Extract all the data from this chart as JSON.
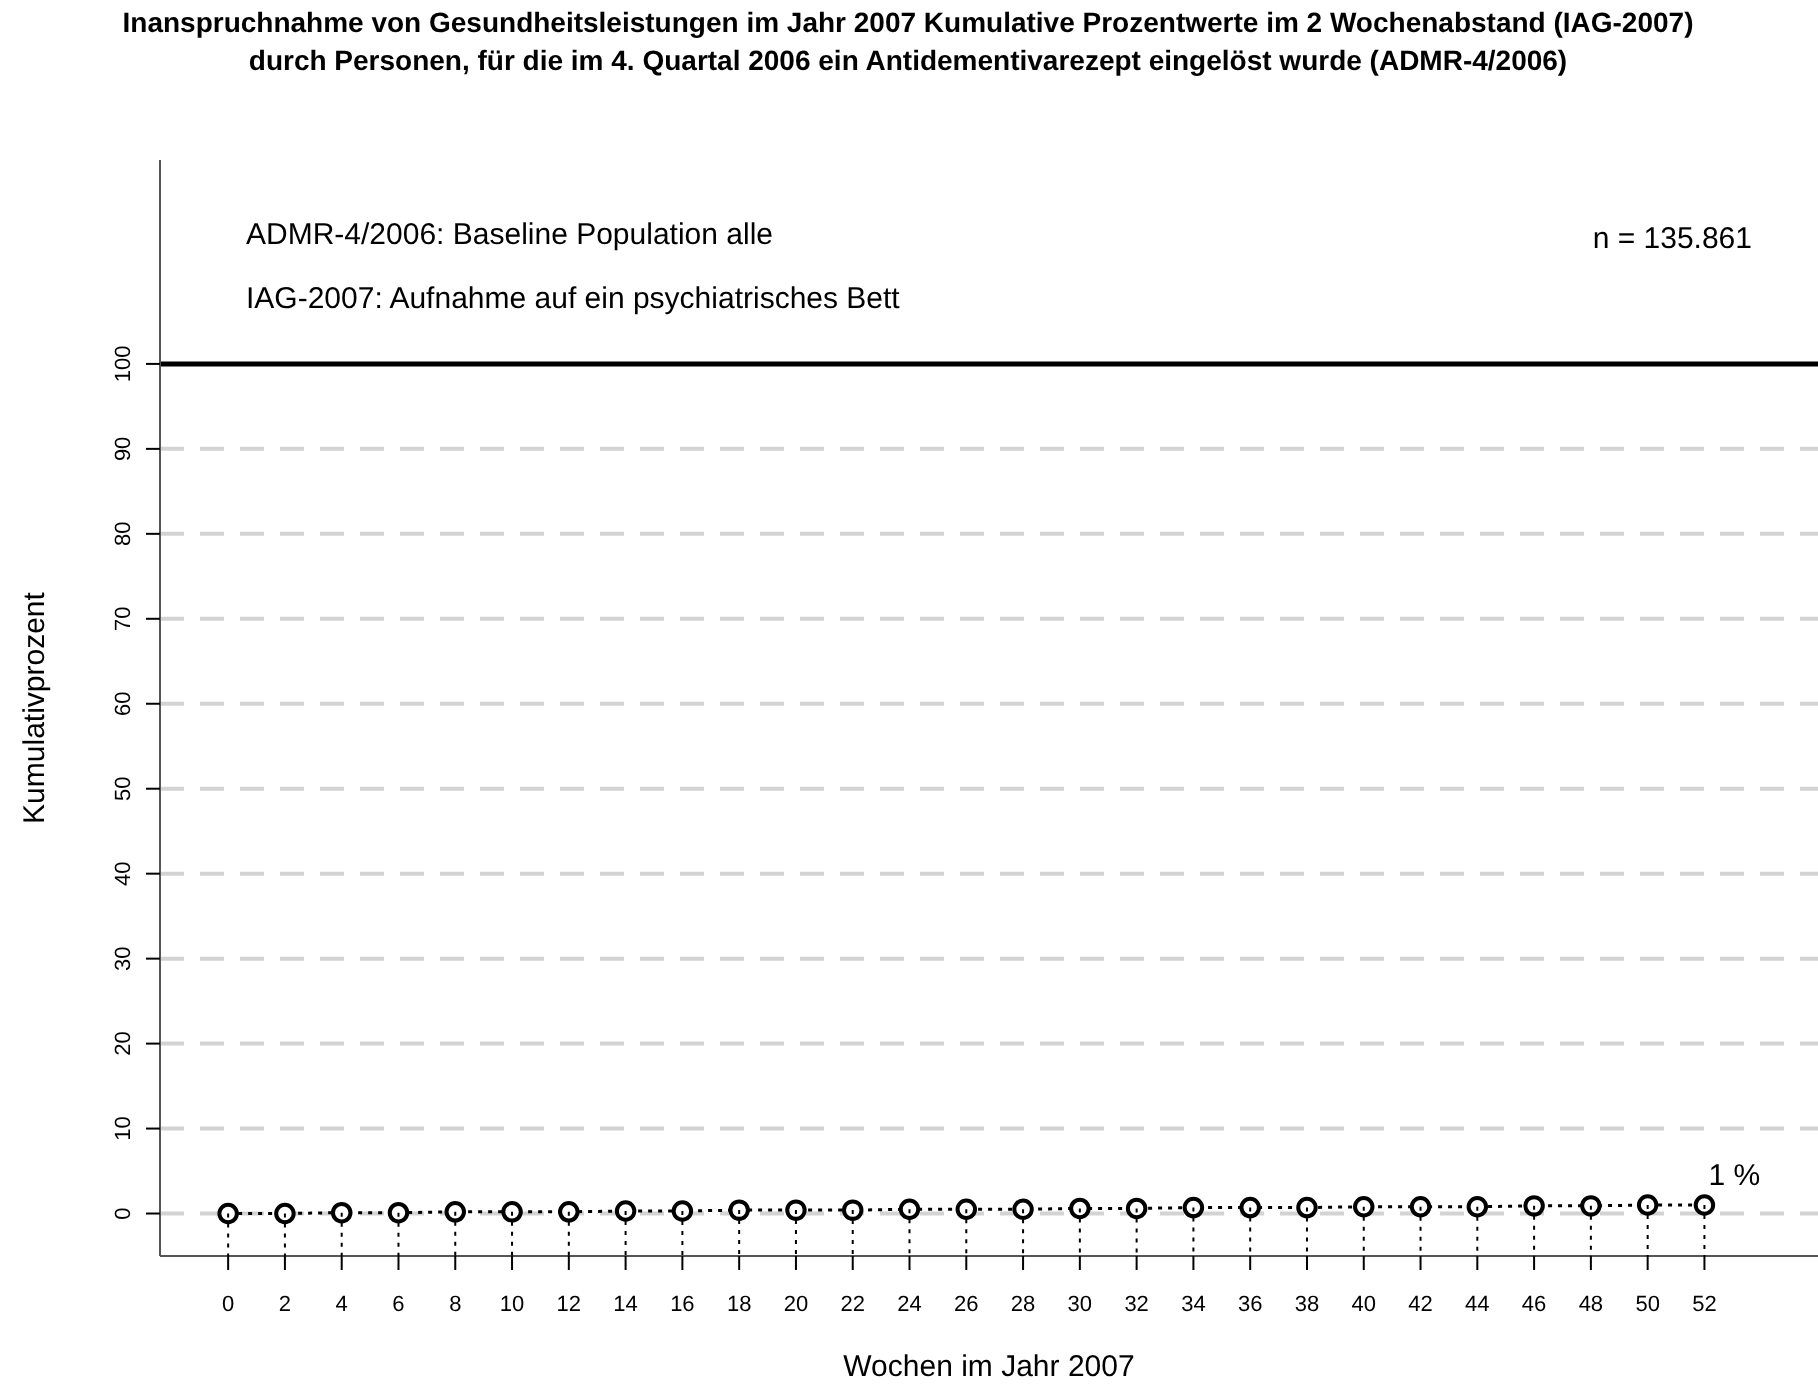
{
  "chart_data": {
    "type": "line",
    "title": "Inanspruchnahme von Gesundheitsleistungen im Jahr 2007 Kumulative Prozentwerte im 2 Wochenabstand (IAG-2007) durch Personen, für die im 4. Quartal 2006 ein Antidementivarezept eingelöst wurde (ADMR-4/2006)",
    "xlabel": "Wochen im Jahr 2007",
    "ylabel": "Kumulativprozent",
    "annotations": [
      "ADMR-4/2006: Baseline Population alle",
      "IAG-2007: Aufnahme auf ein psychiatrisches Bett",
      "n = 135.861"
    ],
    "x": [
      0,
      2,
      4,
      6,
      8,
      10,
      12,
      14,
      16,
      18,
      20,
      22,
      24,
      26,
      28,
      30,
      32,
      34,
      36,
      38,
      40,
      42,
      44,
      46,
      48,
      50,
      52
    ],
    "values": [
      0,
      0,
      0.1,
      0.1,
      0.2,
      0.2,
      0.2,
      0.3,
      0.3,
      0.4,
      0.4,
      0.4,
      0.5,
      0.5,
      0.5,
      0.6,
      0.6,
      0.7,
      0.7,
      0.7,
      0.8,
      0.8,
      0.8,
      0.9,
      0.9,
      1,
      1
    ],
    "value_labels": [
      null,
      null,
      null,
      null,
      null,
      null,
      null,
      null,
      null,
      null,
      null,
      null,
      null,
      null,
      null,
      null,
      null,
      null,
      null,
      null,
      null,
      null,
      null,
      null,
      null,
      null,
      "1 %"
    ],
    "color": "#000000",
    "marker": "circle",
    "line_style": "dotted",
    "xlim": [
      -2.4,
      56
    ],
    "xticks": [
      0,
      2,
      4,
      6,
      8,
      10,
      12,
      14,
      16,
      18,
      20,
      22,
      24,
      26,
      28,
      30,
      32,
      34,
      36,
      38,
      40,
      42,
      44,
      46,
      48,
      50,
      52
    ],
    "ylim": [
      -5,
      124
    ],
    "yticks": [
      0,
      10,
      20,
      30,
      40,
      50,
      60,
      70,
      80,
      90,
      100
    ],
    "grid": "y",
    "ref_lines": [
      {
        "axis": "y",
        "value": 100,
        "color": "#000000",
        "line_style": "solid"
      }
    ]
  }
}
